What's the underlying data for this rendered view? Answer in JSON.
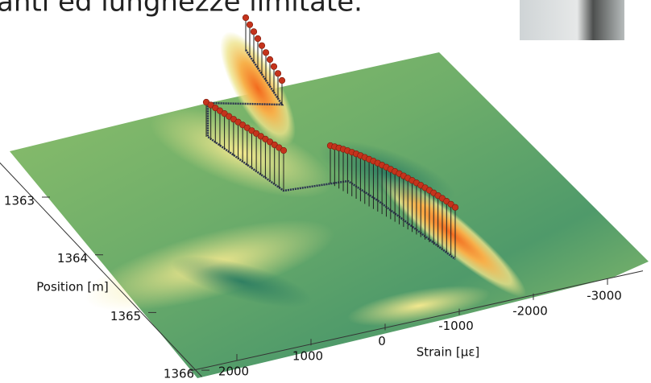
{
  "header": {
    "text": "anti ed lunghezze limitate."
  },
  "chart_data": {
    "type": "surface",
    "xlabel": "Strain [µε]",
    "ylabel": "Position [m]",
    "xlim": [
      2500,
      -3500
    ],
    "xticks": [
      2000,
      1000,
      0,
      -1000,
      -2000,
      -3000
    ],
    "ylim": [
      1362.2,
      1366.1
    ],
    "yticks": [
      1363,
      1364,
      1365,
      1366
    ]
  }
}
